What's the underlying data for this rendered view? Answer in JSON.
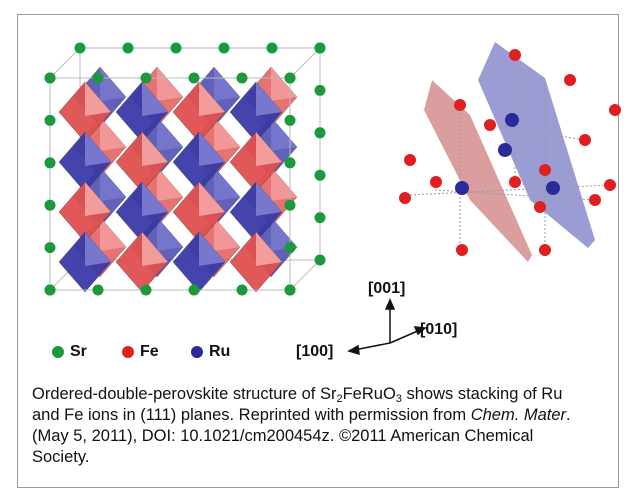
{
  "legend": [
    "Sr",
    "Fe",
    "Ru"
  ],
  "axes": {
    "up": "[001]",
    "right": "[010]",
    "left": "[100]"
  },
  "caption": {
    "part1": "Ordered-double-perovskite structure of Sr",
    "sub1": "2",
    "part2": "FeRuO",
    "sub2": "3",
    "part3": " shows stacking of Ru and Fe ions in (111) planes. Reprinted with permission from ",
    "journal": "Chem. Mater",
    "part4": ". (May 5, 2011), DOI: 10.1021/cm200454z. ©2011 American Chemical Society."
  }
}
